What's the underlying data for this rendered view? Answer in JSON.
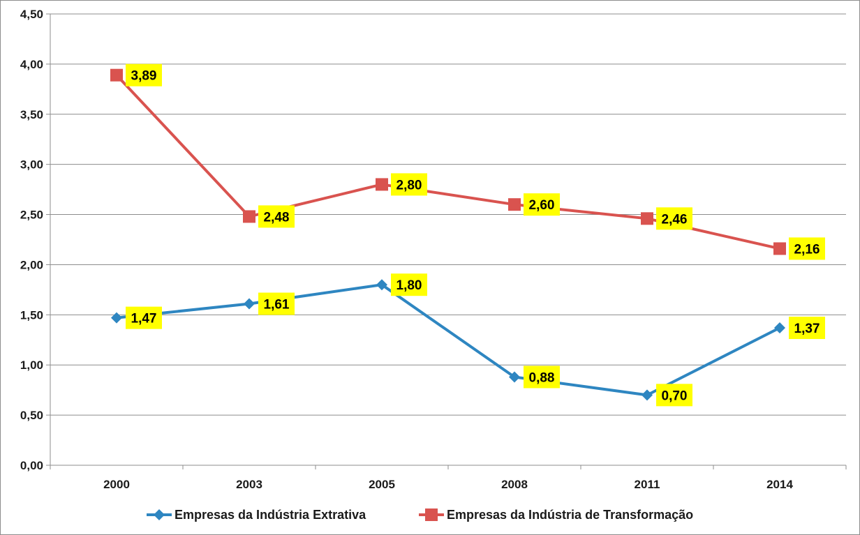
{
  "chart_data": {
    "type": "line",
    "categories": [
      "2000",
      "2003",
      "2005",
      "2008",
      "2011",
      "2014"
    ],
    "ylim": [
      0,
      4.5
    ],
    "yticks": [
      "0,00",
      "0,50",
      "1,00",
      "1,50",
      "2,00",
      "2,50",
      "3,00",
      "3,50",
      "4,00",
      "4,50"
    ],
    "grid": true,
    "legend_position": "bottom",
    "series": [
      {
        "name": "Empresas da Indústria Extrativa",
        "values": [
          1.47,
          1.61,
          1.8,
          0.88,
          0.7,
          1.37
        ],
        "labels": [
          "1,47",
          "1,61",
          "1,80",
          "0,88",
          "0,70",
          "1,37"
        ],
        "color": "#2e86c1",
        "marker": "diamond"
      },
      {
        "name": "Empresas da Indústria de Transformação",
        "values": [
          3.89,
          2.48,
          2.8,
          2.6,
          2.46,
          2.16
        ],
        "labels": [
          "3,89",
          "2,48",
          "2,80",
          "2,60",
          "2,46",
          "2,16"
        ],
        "color": "#d9534f",
        "marker": "square"
      }
    ],
    "data_label_background": "#ffff00"
  }
}
